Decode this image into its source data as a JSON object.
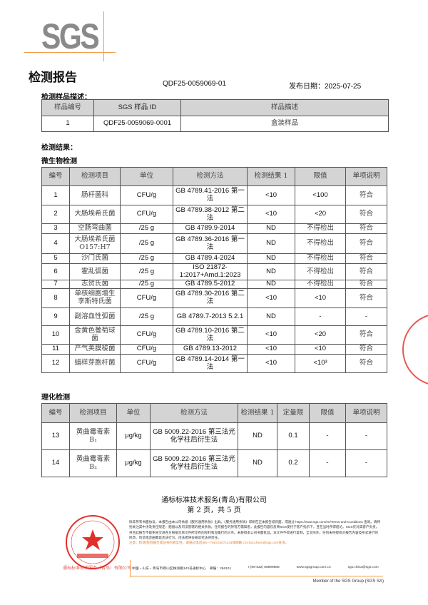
{
  "header": {
    "logo": "SGS",
    "title": "检测报告",
    "report_no": "QDF25-0059069-01",
    "issue_date_label": "发布日期：",
    "issue_date": "2025-07-25"
  },
  "sample": {
    "section_label": "检测样品描述：",
    "headers": [
      "样品编号",
      "SGS 样品 ID",
      "样品描述"
    ],
    "rows": [
      [
        "1",
        "QDF25-0059069-0001",
        "盒装样品"
      ]
    ]
  },
  "results_label": "检测结果：",
  "micro": {
    "section_label": "微生物检测",
    "headers": [
      "编号",
      "检测项目",
      "单位",
      "检测方法",
      "检测结果 1",
      "限值",
      "单项说明"
    ],
    "rows": [
      [
        "1",
        "肠杆菌科",
        "CFU/g",
        "GB 4789.41-2016 第一法",
        "<10",
        "<100",
        "符合"
      ],
      [
        "2",
        "大肠埃希氏菌",
        "CFU/g",
        "GB 4789.38-2012 第二法",
        "<10",
        "<20",
        "符合"
      ],
      [
        "3",
        "空肠弯曲菌",
        "/25 g",
        "GB 4789.9-2014",
        "ND",
        "不得检出",
        "符合"
      ],
      [
        "4",
        "大肠埃希氏菌 O157:H7",
        "/25 g",
        "GB 4789.36-2016 第一法",
        "ND",
        "不得检出",
        "符合"
      ],
      [
        "5",
        "沙门氏菌",
        "/25 g",
        "GB 4789.4-2024",
        "ND",
        "不得检出",
        "符合"
      ],
      [
        "6",
        "霍乱弧菌",
        "/25 g",
        "ISO 21872-1:2017+Amd.1:2023",
        "ND",
        "不得检出",
        "符合"
      ],
      [
        "7",
        "志贺氏菌",
        "/25 g",
        "GB 4789.5-2012",
        "ND",
        "不得检出",
        "符合"
      ],
      [
        "8",
        "单核细胞增生李斯特氏菌",
        "CFU/g",
        "GB 4789.30-2016 第二法",
        "<10",
        "<10",
        "符合"
      ],
      [
        "9",
        "副溶血性弧菌",
        "/25 g",
        "GB 4789.7-2013 5.2.1",
        "ND",
        "-",
        "-"
      ],
      [
        "10",
        "金黄色葡萄球菌",
        "CFU/g",
        "GB 4789.10-2016 第二法",
        "<10",
        "<20",
        "符合"
      ],
      [
        "11",
        "产气荚膜梭菌",
        "CFU/g",
        "GB 4789.13-2012",
        "<10",
        "<10",
        "符合"
      ],
      [
        "12",
        "蜡样芽胞杆菌",
        "CFU/g",
        "GB 4789.14-2014 第一法",
        "<10",
        "<10³",
        "符合"
      ]
    ]
  },
  "chem": {
    "section_label": "理化检测",
    "headers": [
      "编号",
      "检测项目",
      "单位",
      "检测方法",
      "检测结果 1",
      "定量限",
      "限值",
      "单项说明"
    ],
    "rows": [
      [
        "13",
        "黄曲霉毒素 B₁",
        "μg/kg",
        "GB 5009.22-2016 第三法光化学柱后衍生法",
        "ND",
        "0.1",
        "-",
        "-"
      ],
      [
        "14",
        "黄曲霉毒素 B₂",
        "μg/kg",
        "GB 5009.22-2016 第三法光化学柱后衍生法",
        "ND",
        "0.2",
        "-",
        "-"
      ]
    ]
  },
  "footer": {
    "company": "通标标准技术服务(青岛)有限公司",
    "page": "第 2 页，共 5 页",
    "legal": "除非另有书面协议，本报告由本公司依据《服务通用条款》出具。《服务通用条款》印刷在正本报告纸背面，或通过 https://www.sgs.com/en/Terms-and-Conditions 查询。请特别关注其中涉及责任限定、赔偿以及司法管辖的相关条款。任何报告的持有方需知悉，此报告内容仅反映SGS受托于客户指示下，且在当时所得结论。SGS仅对其客户负责，并且此报告不能免除交易各方根据交易文件所享有的权利和应履行的义务。未获得本公司书面批准，本文件不得进行复制，全文除外。任何未经授权对报告内容及形式进行的修改、伪造或歪曲都是违法行为，违法者将会被追究法律责任。",
    "warning": "注意：检测/检验报告或证书的真实性，请通过电话(86－755) 83071443或邮箱 CN.Doccheck@sgs.com查询。",
    "address": "中国・山东・青岛市崂山区株洲路143号通标中心　邮编：266101",
    "phone": "t (86-532) 68999888",
    "web": "www.sgsgroup.com.cn",
    "email": "sgs.china@sgs.com",
    "member": "Member of the SGS Group (SGS SA)",
    "stamp_text": "通标标准技术服务（青岛）有限公司 检验检测专用章 Inspection & Testing Services"
  },
  "colors": {
    "header_bg": "#d4d4d4",
    "accent": "#f29a4a",
    "stamp": "#e0302a"
  }
}
